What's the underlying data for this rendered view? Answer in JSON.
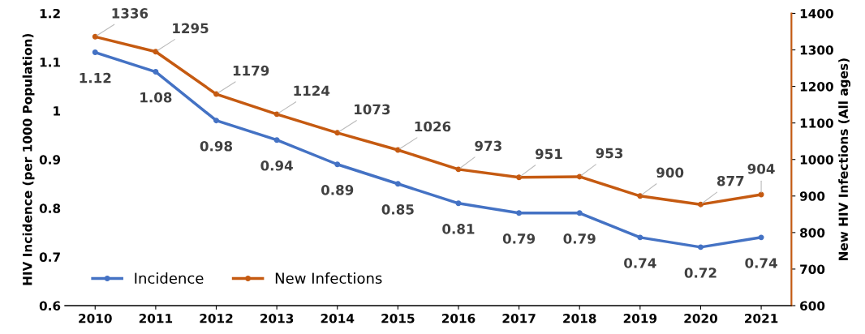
{
  "chart_data": {
    "type": "line",
    "categories": [
      "2010",
      "2011",
      "2012",
      "2013",
      "2014",
      "2015",
      "2016",
      "2017",
      "2018",
      "2019",
      "2020",
      "2021"
    ],
    "ylabel": "HIV Incidence (per 1000 Population)",
    "y2label": "New HIV Infections (All ages)",
    "ylim": [
      0.6,
      1.2
    ],
    "yticks": [
      0.6,
      0.7,
      0.8,
      0.9,
      1,
      1.1,
      1.2
    ],
    "y2lim": [
      600,
      1400
    ],
    "y2ticks": [
      600,
      700,
      800,
      900,
      1000,
      1100,
      1200,
      1300,
      1400
    ],
    "series": [
      {
        "name": "Incidence",
        "color": "#4472c4",
        "values": [
          1.12,
          1.08,
          0.98,
          0.94,
          0.89,
          0.85,
          0.81,
          0.79,
          0.79,
          0.74,
          0.72,
          0.74
        ]
      },
      {
        "name": "New Infections",
        "color": "#c55a11",
        "axis": "y2",
        "values": [
          1336,
          1295,
          1179,
          1124,
          1073,
          1026,
          973,
          951,
          953,
          900,
          877,
          904
        ]
      }
    ],
    "marker": "circle",
    "line_style": "solid",
    "legend": "bottom left",
    "data_labels": true,
    "grid": false
  }
}
